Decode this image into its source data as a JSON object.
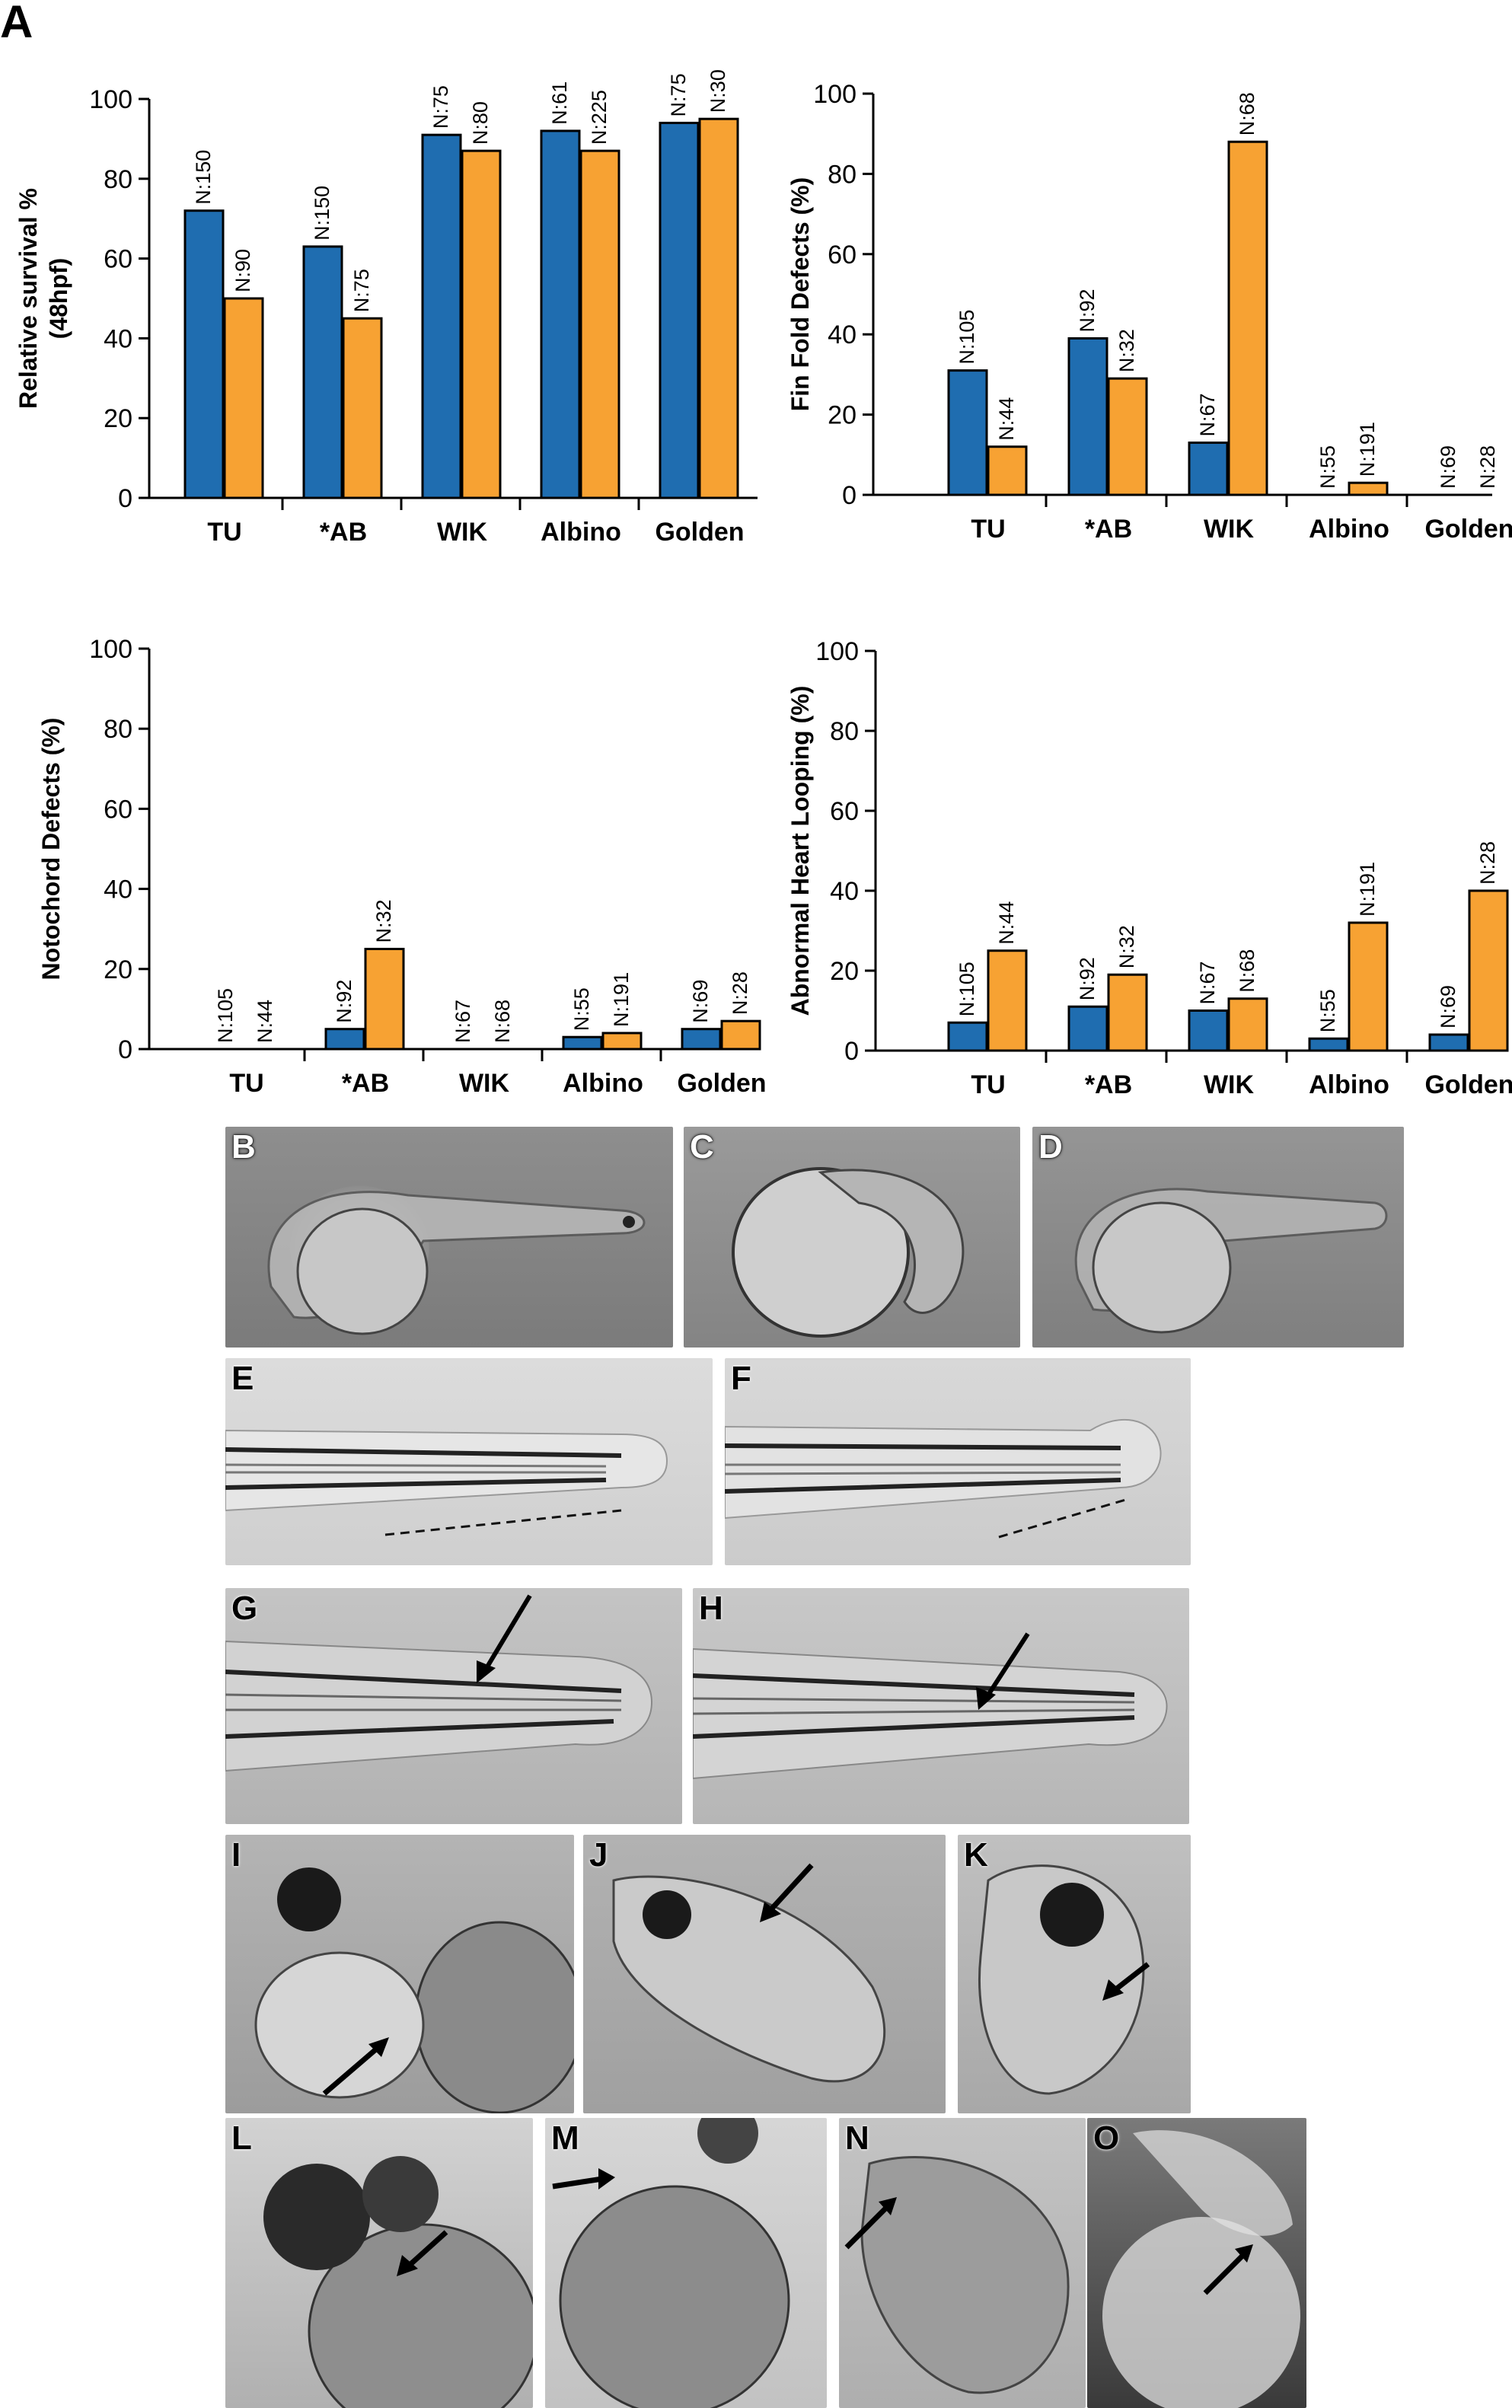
{
  "figure_label": "A",
  "colors": {
    "series1": "#1f6db0",
    "series2": "#f7a233",
    "axis": "#000000"
  },
  "chart_data": [
    {
      "type": "bar",
      "ylabel": "Relative survival %\n(48hpf)",
      "ylim": [
        0,
        100
      ],
      "yticks": [
        0,
        20,
        40,
        60,
        80,
        100
      ],
      "categories": [
        "TU",
        "*AB",
        "WIK",
        "Albino",
        "Golden"
      ],
      "series": [
        {
          "values": [
            72,
            63,
            91,
            92,
            94
          ],
          "labels": [
            "N:150",
            "N:150",
            "N:75",
            "N:61",
            "N:75"
          ]
        },
        {
          "values": [
            50,
            45,
            87,
            87,
            95
          ],
          "labels": [
            "N:90",
            "N:75",
            "N:80",
            "N:225",
            "N:30"
          ]
        }
      ]
    },
    {
      "type": "bar",
      "ylabel": "Fin Fold Defects (%)",
      "ylim": [
        0,
        100
      ],
      "yticks": [
        0,
        20,
        40,
        60,
        80,
        100
      ],
      "categories": [
        "TU",
        "*AB",
        "WIK",
        "Albino",
        "Golden"
      ],
      "series": [
        {
          "values": [
            31,
            39,
            13,
            0,
            0
          ],
          "labels": [
            "N:105",
            "N:92",
            "N:67",
            "N:55",
            "N:69"
          ]
        },
        {
          "values": [
            12,
            29,
            88,
            3,
            0
          ],
          "labels": [
            "N:44",
            "N:32",
            "N:68",
            "N:191",
            "N:28"
          ]
        }
      ]
    },
    {
      "type": "bar",
      "ylabel": "Notochord Defects (%)",
      "ylim": [
        0,
        100
      ],
      "yticks": [
        0,
        20,
        40,
        60,
        80,
        100
      ],
      "categories": [
        "TU",
        "*AB",
        "WIK",
        "Albino",
        "Golden"
      ],
      "series": [
        {
          "values": [
            0,
            5,
            0,
            3,
            5
          ],
          "labels": [
            "N:105",
            "N:92",
            "N:67",
            "N:55",
            "N:69"
          ]
        },
        {
          "values": [
            0,
            25,
            0,
            4,
            7
          ],
          "labels": [
            "N:44",
            "N:32",
            "N:68",
            "N:191",
            "N:28"
          ]
        }
      ]
    },
    {
      "type": "bar",
      "ylabel": "Abnormal Heart Looping (%)",
      "ylim": [
        0,
        100
      ],
      "yticks": [
        0,
        20,
        40,
        60,
        80,
        100
      ],
      "categories": [
        "TU",
        "*AB",
        "WIK",
        "Albino",
        "Golden"
      ],
      "series": [
        {
          "values": [
            7,
            11,
            10,
            3,
            4
          ],
          "labels": [
            "N:105",
            "N:92",
            "N:67",
            "N:55",
            "N:69"
          ]
        },
        {
          "values": [
            25,
            19,
            13,
            32,
            40
          ],
          "labels": [
            "N:44",
            "N:32",
            "N:68",
            "N:191",
            "N:28"
          ]
        }
      ]
    }
  ],
  "panels": {
    "B": "B",
    "C": "C",
    "D": "D",
    "E": "E",
    "F": "F",
    "G": "G",
    "H": "H",
    "I": "I",
    "J": "J",
    "K": "K",
    "L": "L",
    "M": "M",
    "N": "N",
    "O": "O"
  }
}
